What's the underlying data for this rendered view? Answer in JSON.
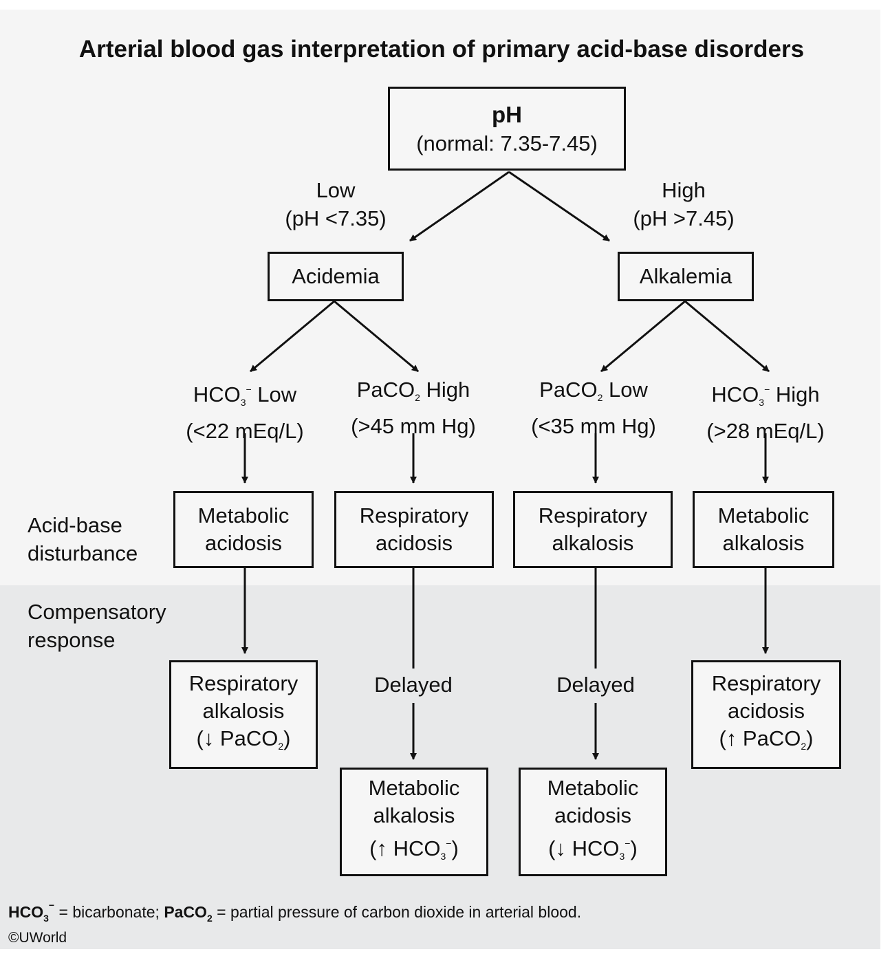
{
  "title": "Arterial blood gas interpretation of primary acid-base disorders",
  "root": {
    "label": "pH",
    "detail": "(normal: 7.35-7.45)"
  },
  "branch_low": {
    "line1": "Low",
    "line2": "(pH <7.35)"
  },
  "branch_high": {
    "line1": "High",
    "line2": "(pH >7.45)"
  },
  "acidemia": "Acidemia",
  "alkalemia": "Alkalemia",
  "criteria": {
    "hco3_low": {
      "pre": "HCO",
      "sub": "3",
      "sup": "−",
      "post": " Low",
      "line2": "(<22 mEq/L)"
    },
    "paco2_high": {
      "pre": "PaCO",
      "sub": "2",
      "post": " High",
      "line2": "(>45 mm Hg)"
    },
    "paco2_low": {
      "pre": "PaCO",
      "sub": "2",
      "post": " Low",
      "line2": "(<35 mm Hg)"
    },
    "hco3_high": {
      "pre": "HCO",
      "sub": "3",
      "sup": "−",
      "post": " High",
      "line2": "(>28 mEq/L)"
    }
  },
  "side_labels": {
    "disturbance": [
      "Acid-base",
      "disturbance"
    ],
    "compensation": [
      "Compensatory",
      "response"
    ]
  },
  "disorders": {
    "metabolic_acidosis": [
      "Metabolic",
      "acidosis"
    ],
    "respiratory_acidosis": [
      "Respiratory",
      "acidosis"
    ],
    "respiratory_alkalosis": [
      "Respiratory",
      "alkalosis"
    ],
    "metabolic_alkalosis": [
      "Metabolic",
      "alkalosis"
    ]
  },
  "delayed_label": "Delayed",
  "compensations": {
    "c1": {
      "line1": "Respiratory",
      "line2": "alkalosis",
      "pre": "(↓ PaCO",
      "sub": "2",
      "post": ")"
    },
    "c2": {
      "line1": "Metabolic",
      "line2": "alkalosis",
      "pre": "(↑ HCO",
      "sub": "3",
      "sup": "−",
      "post": ")"
    },
    "c3": {
      "line1": "Metabolic",
      "line2": "acidosis",
      "pre": "(↓ HCO",
      "sub": "3",
      "sup": "−",
      "post": ")"
    },
    "c4": {
      "line1": "Respiratory",
      "line2": "acidosis",
      "pre": "(↑ PaCO",
      "sub": "2",
      "post": ")"
    }
  },
  "footnote": {
    "hco3": "HCO",
    "hco3_sub": "3",
    "hco3_sup": "−",
    "hco3_def": " = bicarbonate; ",
    "paco2": "PaCO",
    "paco2_sub": "2",
    "paco2_def": " = partial pressure of carbon dioxide in arterial blood."
  },
  "copyright": "©UWorld",
  "colors": {
    "band_top": "#f5f5f5",
    "band_bottom": "#e8e9ea",
    "stroke": "#111111"
  }
}
